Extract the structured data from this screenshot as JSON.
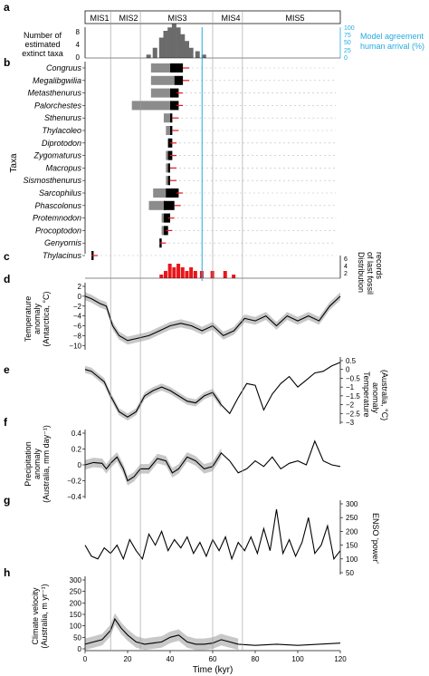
{
  "colors": {
    "ink": "#111111",
    "grid": "#9a9a9a",
    "band": "#c8c8c8",
    "dark_gray": "#6b6b6b",
    "black": "#000000",
    "red": "#e8161b",
    "cyan": "#27a9e1"
  },
  "panels": {
    "a": {
      "letter": "a",
      "ylabel1": "Number of",
      "ylabel2": "estimated",
      "ylabel3": "extinct taxa",
      "yticks": [
        "0",
        "4",
        "8"
      ],
      "right_ticks": [
        "0",
        "25",
        "50",
        "75",
        "100"
      ],
      "right_label1": "Model agreement",
      "right_label2": "human arrival (%)"
    },
    "b": {
      "letter": "b",
      "ylabel": "Taxa"
    },
    "c": {
      "letter": "c",
      "rlabel1": "Distribution",
      "rlabel2": "of last fossil",
      "rlabel3": "records",
      "yticks": [
        "2",
        "4",
        "6"
      ]
    },
    "d": {
      "letter": "d",
      "ylabel1": "Temperature",
      "ylabel2": "anomaly",
      "ylabel3": "(Antarctica, °C)",
      "yticks": [
        "2",
        "0",
        "−2",
        "−4",
        "−6",
        "−8",
        "−10"
      ]
    },
    "e": {
      "letter": "e",
      "rlabel1": "Temperature",
      "rlabel2": "anomaly",
      "rlabel3": "(Australia, °C)",
      "yticks": [
        "0.5",
        "0",
        "−0.5",
        "−1",
        "−1.5",
        "−2",
        "−2.5",
        "−3"
      ]
    },
    "f": {
      "letter": "f",
      "ylabel1": "Precipitation",
      "ylabel2": "anomaly",
      "ylabel3": "(Australia, mm day⁻¹)",
      "yticks": [
        "0.4",
        "0.2",
        "0",
        "−0.2",
        "−0.4"
      ]
    },
    "g": {
      "letter": "g",
      "rlabel1": "ENSO 'power'",
      "yticks": [
        "300",
        "250",
        "200",
        "150",
        "100",
        "50"
      ]
    },
    "h": {
      "letter": "h",
      "ylabel1": "Climate velocity",
      "ylabel2": "(Australia, m yr⁻¹)",
      "yticks": [
        "300",
        "250",
        "200",
        "150",
        "100",
        "50",
        "0"
      ]
    }
  },
  "mis_labels": [
    "MIS1",
    "MIS2",
    "MIS3",
    "MIS4",
    "MIS5"
  ],
  "chart_data": {
    "type": "line",
    "xlabel": "Time (kyr)",
    "xlim": [
      0,
      120
    ],
    "xticks": [
      "0",
      "20",
      "40",
      "60",
      "80",
      "100",
      "120"
    ],
    "mis_boundaries": [
      12,
      26,
      60,
      74
    ],
    "human_arrival_kyr": 55,
    "taxa": [
      {
        "name": "Congruus",
        "gray": [
          31,
          40
        ],
        "black": [
          40,
          46
        ],
        "last": 46
      },
      {
        "name": "Megalibgwilia",
        "gray": [
          31,
          42
        ],
        "black": [
          42,
          46
        ],
        "last": 46
      },
      {
        "name": "Metasthenurus",
        "gray": [
          31,
          40
        ],
        "black": [
          40,
          44
        ],
        "last": 43
      },
      {
        "name": "Palorchestes",
        "gray": [
          22,
          40
        ],
        "black": [
          40,
          44
        ],
        "last": 43
      },
      {
        "name": "Sthenurus",
        "gray": [
          37,
          41
        ],
        "black": [
          40,
          41
        ],
        "last": 41
      },
      {
        "name": "Thylacoleo",
        "gray": [
          38,
          41
        ],
        "black": [
          40,
          41
        ],
        "last": 41
      },
      {
        "name": "Diprotodon",
        "gray": [
          39,
          40
        ],
        "black": [
          39,
          41
        ],
        "last": 40
      },
      {
        "name": "Zygomaturus",
        "gray": [
          38,
          41
        ],
        "black": [
          39,
          41
        ],
        "last": 40
      },
      {
        "name": "Macropus",
        "gray": [
          38,
          40
        ],
        "black": [
          39,
          40
        ],
        "last": 40
      },
      {
        "name": "Sismosthenurus",
        "gray": [
          38,
          40
        ],
        "black": [
          39,
          40
        ],
        "last": 40
      },
      {
        "name": "Sarcophilus",
        "gray": [
          32,
          41
        ],
        "black": [
          38,
          44
        ],
        "last": 43
      },
      {
        "name": "Phascolonus",
        "gray": [
          30,
          38
        ],
        "black": [
          37,
          42
        ],
        "last": 42
      },
      {
        "name": "Protemnodon",
        "gray": [
          36,
          40
        ],
        "black": [
          37,
          40
        ],
        "last": 39
      },
      {
        "name": "Procoptodon",
        "gray": [
          36,
          39
        ],
        "black": [
          37,
          39
        ],
        "last": 38
      },
      {
        "name": "Genyornis",
        "gray": [
          35,
          36
        ],
        "black": [
          35,
          36
        ],
        "last": 35
      },
      {
        "name": "Thylacinus",
        "gray": [
          3,
          4
        ],
        "black": [
          3,
          4
        ],
        "last": 3
      }
    ],
    "extinct_taxa_counts": [
      {
        "x": 30,
        "y": 1
      },
      {
        "x": 33,
        "y": 3
      },
      {
        "x": 36,
        "y": 6
      },
      {
        "x": 38,
        "y": 8
      },
      {
        "x": 40,
        "y": 9
      },
      {
        "x": 42,
        "y": 10
      },
      {
        "x": 44,
        "y": 9
      },
      {
        "x": 46,
        "y": 7
      },
      {
        "x": 48,
        "y": 5
      },
      {
        "x": 50,
        "y": 3
      },
      {
        "x": 53,
        "y": 2
      },
      {
        "x": 56,
        "y": 1
      },
      {
        "x": 60,
        "y": 0
      }
    ],
    "last_fossil_distribution": [
      {
        "x": 36,
        "y": 1
      },
      {
        "x": 38,
        "y": 2
      },
      {
        "x": 40,
        "y": 4
      },
      {
        "x": 42,
        "y": 3
      },
      {
        "x": 44,
        "y": 4
      },
      {
        "x": 46,
        "y": 3
      },
      {
        "x": 48,
        "y": 2
      },
      {
        "x": 50,
        "y": 3
      },
      {
        "x": 52,
        "y": 2
      },
      {
        "x": 55,
        "y": 2
      },
      {
        "x": 60,
        "y": 2
      },
      {
        "x": 66,
        "y": 2
      },
      {
        "x": 70,
        "y": 1
      }
    ],
    "antarctica_temp": [
      {
        "x": 0,
        "y": 0
      },
      {
        "x": 3,
        "y": -0.5
      },
      {
        "x": 7,
        "y": -1.5
      },
      {
        "x": 10,
        "y": -2
      },
      {
        "x": 13,
        "y": -6
      },
      {
        "x": 16,
        "y": -8
      },
      {
        "x": 20,
        "y": -9
      },
      {
        "x": 25,
        "y": -8.5
      },
      {
        "x": 30,
        "y": -8
      },
      {
        "x": 35,
        "y": -7
      },
      {
        "x": 40,
        "y": -6
      },
      {
        "x": 45,
        "y": -5.5
      },
      {
        "x": 50,
        "y": -6
      },
      {
        "x": 55,
        "y": -7
      },
      {
        "x": 60,
        "y": -6
      },
      {
        "x": 65,
        "y": -8
      },
      {
        "x": 70,
        "y": -7
      },
      {
        "x": 75,
        "y": -4.5
      },
      {
        "x": 80,
        "y": -5
      },
      {
        "x": 85,
        "y": -4
      },
      {
        "x": 90,
        "y": -6
      },
      {
        "x": 95,
        "y": -4
      },
      {
        "x": 100,
        "y": -5
      },
      {
        "x": 105,
        "y": -4
      },
      {
        "x": 110,
        "y": -5
      },
      {
        "x": 115,
        "y": -2
      },
      {
        "x": 120,
        "y": 0
      }
    ],
    "australia_temp": [
      {
        "x": 0,
        "y": 0
      },
      {
        "x": 3,
        "y": -0.1
      },
      {
        "x": 6,
        "y": -0.4
      },
      {
        "x": 9,
        "y": -0.7
      },
      {
        "x": 12,
        "y": -1.5
      },
      {
        "x": 16,
        "y": -2.4
      },
      {
        "x": 20,
        "y": -2.7
      },
      {
        "x": 24,
        "y": -2.4
      },
      {
        "x": 28,
        "y": -1.5
      },
      {
        "x": 32,
        "y": -1.2
      },
      {
        "x": 36,
        "y": -1.0
      },
      {
        "x": 40,
        "y": -1.2
      },
      {
        "x": 44,
        "y": -1.5
      },
      {
        "x": 48,
        "y": -1.8
      },
      {
        "x": 52,
        "y": -1.9
      },
      {
        "x": 56,
        "y": -1.5
      },
      {
        "x": 60,
        "y": -1.3
      },
      {
        "x": 64,
        "y": -2.0
      },
      {
        "x": 68,
        "y": -2.5
      },
      {
        "x": 72,
        "y": -1.6
      },
      {
        "x": 76,
        "y": -0.8
      },
      {
        "x": 80,
        "y": -0.9
      },
      {
        "x": 84,
        "y": -2.3
      },
      {
        "x": 88,
        "y": -1.4
      },
      {
        "x": 92,
        "y": -0.8
      },
      {
        "x": 96,
        "y": -0.4
      },
      {
        "x": 100,
        "y": -1.0
      },
      {
        "x": 104,
        "y": -0.6
      },
      {
        "x": 108,
        "y": -0.2
      },
      {
        "x": 112,
        "y": -0.1
      },
      {
        "x": 116,
        "y": 0.2
      },
      {
        "x": 120,
        "y": 0.4
      }
    ],
    "precipitation": [
      {
        "x": 0,
        "y": 0
      },
      {
        "x": 4,
        "y": 0.03
      },
      {
        "x": 8,
        "y": 0.02
      },
      {
        "x": 10,
        "y": -0.05
      },
      {
        "x": 12,
        "y": 0.02
      },
      {
        "x": 15,
        "y": 0.1
      },
      {
        "x": 18,
        "y": -0.05
      },
      {
        "x": 20,
        "y": -0.2
      },
      {
        "x": 23,
        "y": -0.15
      },
      {
        "x": 26,
        "y": -0.05
      },
      {
        "x": 30,
        "y": -0.05
      },
      {
        "x": 34,
        "y": 0.08
      },
      {
        "x": 38,
        "y": 0.05
      },
      {
        "x": 41,
        "y": -0.1
      },
      {
        "x": 44,
        "y": -0.05
      },
      {
        "x": 48,
        "y": 0.1
      },
      {
        "x": 52,
        "y": 0.05
      },
      {
        "x": 56,
        "y": -0.05
      },
      {
        "x": 60,
        "y": -0.02
      },
      {
        "x": 64,
        "y": 0.15
      },
      {
        "x": 68,
        "y": 0.05
      },
      {
        "x": 72,
        "y": -0.1
      },
      {
        "x": 76,
        "y": -0.05
      },
      {
        "x": 80,
        "y": 0.05
      },
      {
        "x": 84,
        "y": -0.02
      },
      {
        "x": 88,
        "y": 0.1
      },
      {
        "x": 92,
        "y": -0.05
      },
      {
        "x": 96,
        "y": 0.02
      },
      {
        "x": 100,
        "y": 0.05
      },
      {
        "x": 104,
        "y": 0.0
      },
      {
        "x": 108,
        "y": 0.3
      },
      {
        "x": 112,
        "y": 0.05
      },
      {
        "x": 116,
        "y": 0.0
      },
      {
        "x": 120,
        "y": -0.02
      }
    ],
    "enso_power": [
      {
        "x": 0,
        "y": 150
      },
      {
        "x": 3,
        "y": 110
      },
      {
        "x": 6,
        "y": 100
      },
      {
        "x": 9,
        "y": 140
      },
      {
        "x": 12,
        "y": 120
      },
      {
        "x": 15,
        "y": 150
      },
      {
        "x": 18,
        "y": 100
      },
      {
        "x": 21,
        "y": 170
      },
      {
        "x": 24,
        "y": 130
      },
      {
        "x": 27,
        "y": 100
      },
      {
        "x": 30,
        "y": 190
      },
      {
        "x": 33,
        "y": 150
      },
      {
        "x": 36,
        "y": 200
      },
      {
        "x": 39,
        "y": 130
      },
      {
        "x": 42,
        "y": 170
      },
      {
        "x": 45,
        "y": 140
      },
      {
        "x": 48,
        "y": 180
      },
      {
        "x": 51,
        "y": 120
      },
      {
        "x": 54,
        "y": 160
      },
      {
        "x": 57,
        "y": 110
      },
      {
        "x": 60,
        "y": 170
      },
      {
        "x": 63,
        "y": 130
      },
      {
        "x": 66,
        "y": 180
      },
      {
        "x": 69,
        "y": 100
      },
      {
        "x": 72,
        "y": 160
      },
      {
        "x": 75,
        "y": 130
      },
      {
        "x": 78,
        "y": 180
      },
      {
        "x": 81,
        "y": 120
      },
      {
        "x": 84,
        "y": 210
      },
      {
        "x": 87,
        "y": 130
      },
      {
        "x": 90,
        "y": 280
      },
      {
        "x": 93,
        "y": 120
      },
      {
        "x": 96,
        "y": 170
      },
      {
        "x": 99,
        "y": 110
      },
      {
        "x": 102,
        "y": 160
      },
      {
        "x": 105,
        "y": 250
      },
      {
        "x": 108,
        "y": 120
      },
      {
        "x": 111,
        "y": 150
      },
      {
        "x": 114,
        "y": 220
      },
      {
        "x": 117,
        "y": 100
      },
      {
        "x": 120,
        "y": 130
      }
    ],
    "climate_velocity": [
      {
        "x": 0,
        "y": 20
      },
      {
        "x": 4,
        "y": 30
      },
      {
        "x": 8,
        "y": 40
      },
      {
        "x": 12,
        "y": 80
      },
      {
        "x": 14,
        "y": 130
      },
      {
        "x": 17,
        "y": 90
      },
      {
        "x": 20,
        "y": 60
      },
      {
        "x": 24,
        "y": 30
      },
      {
        "x": 28,
        "y": 20
      },
      {
        "x": 32,
        "y": 25
      },
      {
        "x": 36,
        "y": 30
      },
      {
        "x": 40,
        "y": 50
      },
      {
        "x": 44,
        "y": 60
      },
      {
        "x": 48,
        "y": 30
      },
      {
        "x": 52,
        "y": 20
      },
      {
        "x": 56,
        "y": 20
      },
      {
        "x": 60,
        "y": 25
      },
      {
        "x": 64,
        "y": 40
      },
      {
        "x": 68,
        "y": 30
      },
      {
        "x": 72,
        "y": 20
      },
      {
        "x": 80,
        "y": 15
      },
      {
        "x": 90,
        "y": 20
      },
      {
        "x": 100,
        "y": 15
      },
      {
        "x": 110,
        "y": 20
      },
      {
        "x": 120,
        "y": 25
      }
    ]
  }
}
